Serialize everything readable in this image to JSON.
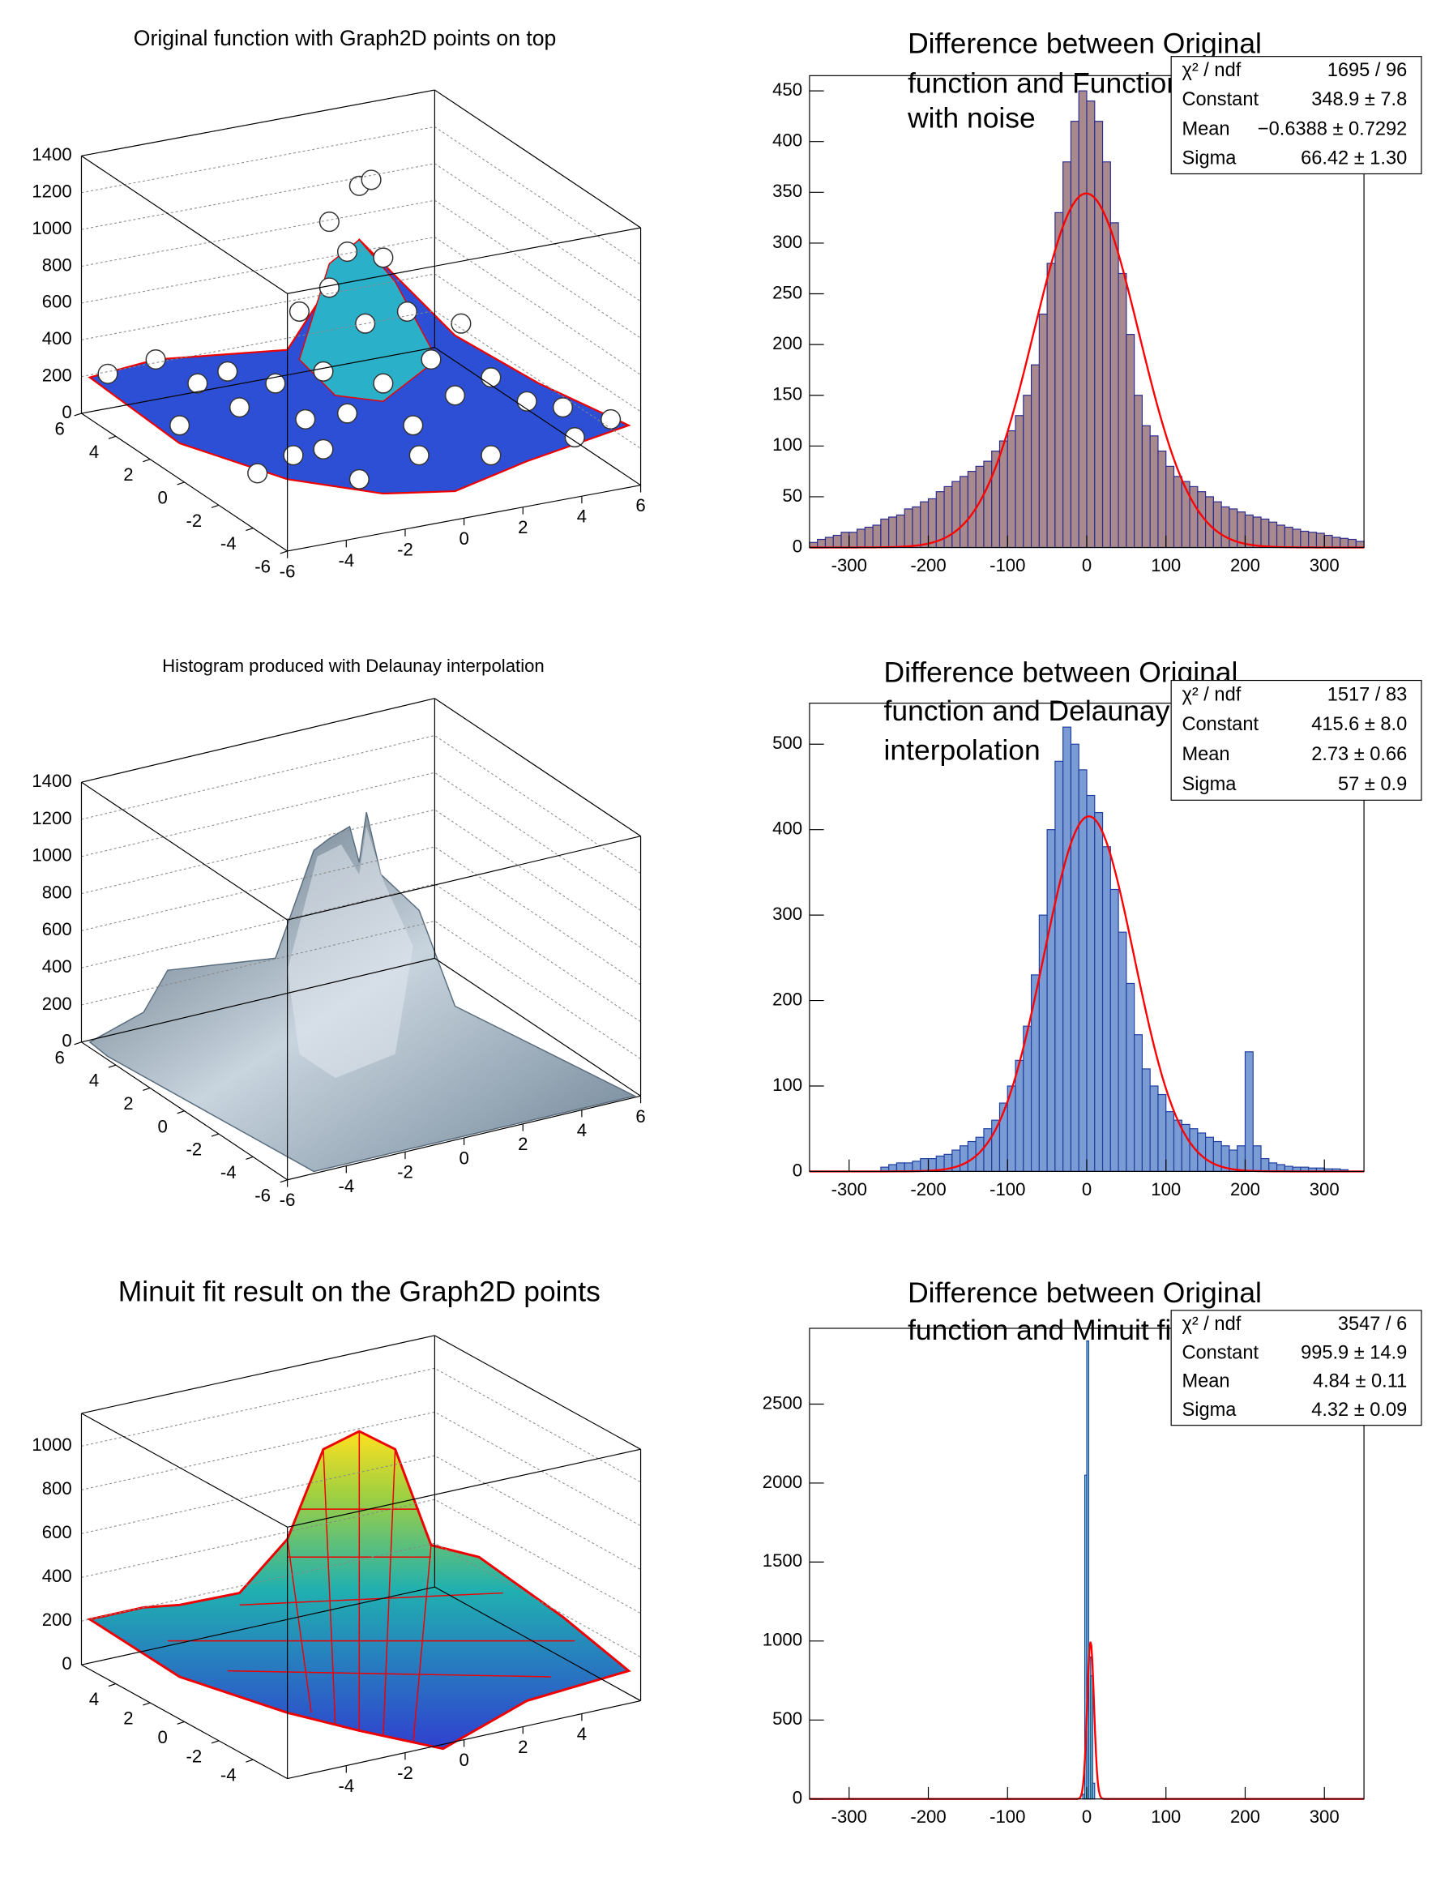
{
  "chart_data": [
    {
      "type": "surface3d",
      "title": "Original function with Graph2D points on top",
      "xlim": [
        -6,
        6
      ],
      "ylim": [
        -6,
        6
      ],
      "zlim": [
        0,
        1400
      ],
      "xticks": [
        -6,
        -4,
        -2,
        0,
        2,
        4,
        6
      ],
      "yticks": [
        -6,
        -4,
        -2,
        0,
        2,
        4,
        6
      ],
      "zticks": [
        0,
        200,
        400,
        600,
        800,
        1000,
        1200,
        1400
      ]
    },
    {
      "type": "histogram",
      "title": [
        "Difference between Original",
        "function and Function",
        "with noise"
      ],
      "bins": [
        -350,
        -340,
        -330,
        -320,
        -310,
        -300,
        -290,
        -280,
        -270,
        -260,
        -250,
        -240,
        -230,
        -220,
        -210,
        -200,
        -190,
        -180,
        -170,
        -160,
        -150,
        -140,
        -130,
        -120,
        -110,
        -100,
        -90,
        -80,
        -70,
        -60,
        -50,
        -40,
        -30,
        -20,
        -10,
        0,
        10,
        20,
        30,
        40,
        50,
        60,
        70,
        80,
        90,
        100,
        110,
        120,
        130,
        140,
        150,
        160,
        170,
        180,
        190,
        200,
        210,
        220,
        230,
        240,
        250,
        260,
        270,
        280,
        290,
        300,
        310,
        320,
        330,
        340,
        350
      ],
      "values": [
        5,
        8,
        10,
        12,
        15,
        15,
        18,
        20,
        22,
        28,
        30,
        32,
        38,
        40,
        45,
        48,
        55,
        60,
        65,
        70,
        75,
        80,
        85,
        95,
        105,
        115,
        130,
        150,
        180,
        230,
        280,
        330,
        380,
        420,
        450,
        440,
        420,
        380,
        320,
        270,
        210,
        150,
        120,
        110,
        95,
        80,
        70,
        65,
        60,
        55,
        50,
        45,
        40,
        38,
        35,
        32,
        30,
        28,
        25,
        22,
        20,
        18,
        16,
        15,
        14,
        12,
        10,
        9,
        8,
        6
      ],
      "color": "#2b2b8f",
      "fill": "#a8898d",
      "fit_color": "#ff0000",
      "xlim": [
        -350,
        350
      ],
      "ylim": [
        0,
        465
      ],
      "xticks": [
        -300,
        -200,
        -100,
        0,
        100,
        200,
        300
      ],
      "yticks": [
        0,
        50,
        100,
        150,
        200,
        250,
        300,
        350,
        400,
        450
      ],
      "stats": [
        {
          "name": "χ² / ndf",
          "label": "1695 / 96"
        },
        {
          "name": "Constant",
          "value": 348.9,
          "label": "348.9 ± 7.8"
        },
        {
          "name": "Mean",
          "value": -0.6388,
          "label": "−0.6388 ± 0.7292"
        },
        {
          "name": "Sigma",
          "value": 66.42,
          "label": "66.42 ± 1.30"
        }
      ]
    },
    {
      "type": "surface3d",
      "title": "Histogram produced with Delaunay interpolation",
      "xlim": [
        -6,
        6
      ],
      "ylim": [
        -6,
        6
      ],
      "zlim": [
        0,
        1400
      ],
      "xticks": [
        -6,
        -4,
        -2,
        0,
        2,
        4,
        6
      ],
      "yticks": [
        -6,
        -4,
        -2,
        0,
        2,
        4,
        6
      ],
      "zticks": [
        0,
        200,
        400,
        600,
        800,
        1000,
        1200,
        1400
      ]
    },
    {
      "type": "histogram",
      "title": [
        "Difference between Original",
        "function and Delaunay triangles",
        "interpolation"
      ],
      "bins": [
        -350,
        -340,
        -330,
        -320,
        -310,
        -300,
        -290,
        -280,
        -270,
        -260,
        -250,
        -240,
        -230,
        -220,
        -210,
        -200,
        -190,
        -180,
        -170,
        -160,
        -150,
        -140,
        -130,
        -120,
        -110,
        -100,
        -90,
        -80,
        -70,
        -60,
        -50,
        -40,
        -30,
        -20,
        -10,
        0,
        10,
        20,
        30,
        40,
        50,
        60,
        70,
        80,
        90,
        100,
        110,
        120,
        130,
        140,
        150,
        160,
        170,
        180,
        190,
        200,
        210,
        220,
        230,
        240,
        250,
        260,
        270,
        280,
        290,
        300,
        310,
        320,
        330,
        340,
        350
      ],
      "values": [
        0,
        0,
        0,
        0,
        0,
        0,
        0,
        0,
        0,
        5,
        8,
        10,
        10,
        12,
        15,
        15,
        18,
        20,
        25,
        30,
        35,
        40,
        50,
        60,
        80,
        100,
        130,
        170,
        230,
        300,
        400,
        480,
        520,
        500,
        470,
        440,
        420,
        380,
        330,
        280,
        220,
        160,
        120,
        100,
        90,
        70,
        60,
        55,
        50,
        45,
        40,
        35,
        30,
        25,
        30,
        140,
        30,
        15,
        10,
        8,
        6,
        5,
        5,
        4,
        4,
        3,
        3,
        2,
        0,
        0
      ],
      "color": "#1f3fa0",
      "fill": "#7a9bd4",
      "fit_color": "#ff0000",
      "xlim": [
        -350,
        350
      ],
      "ylim": [
        0,
        548
      ],
      "xticks": [
        -300,
        -200,
        -100,
        0,
        100,
        200,
        300
      ],
      "yticks": [
        0,
        100,
        200,
        300,
        400,
        500
      ],
      "stats": [
        {
          "name": "χ² / ndf",
          "label": "1517 / 83"
        },
        {
          "name": "Constant",
          "value": 415.6,
          "label": "415.6 ± 8.0"
        },
        {
          "name": "Mean",
          "value": 2.73,
          "label": "2.73 ± 0.66"
        },
        {
          "name": "Sigma",
          "value": 57,
          "label": "57 ± 0.9"
        }
      ]
    },
    {
      "type": "surface3d",
      "title": "Minuit fit result on the Graph2D points",
      "xlim": [
        -6,
        6
      ],
      "ylim": [
        -6,
        6
      ],
      "zlim": [
        0,
        1150
      ],
      "xticks": [
        -4,
        -2,
        0,
        2,
        4
      ],
      "yticks": [
        -4,
        -2,
        0,
        2,
        4
      ],
      "zticks": [
        0,
        200,
        400,
        600,
        800,
        1000
      ]
    },
    {
      "type": "histogram",
      "title": [
        "Difference between Original",
        "function and Minuit fit"
      ],
      "bins": [
        -350,
        -5,
        -2.5,
        0,
        2.5,
        5,
        7.5,
        10,
        350
      ],
      "values": [
        0,
        30,
        2050,
        2900,
        900,
        780,
        100,
        0
      ],
      "color": "#1f3fa0",
      "fill": "#7fd3c9",
      "fit_color": "#ff0000",
      "xlim": [
        -350,
        350
      ],
      "ylim": [
        0,
        2980
      ],
      "xticks": [
        -300,
        -200,
        -100,
        0,
        100,
        200,
        300
      ],
      "yticks": [
        0,
        500,
        1000,
        1500,
        2000,
        2500
      ],
      "stats": [
        {
          "name": "χ² / ndf",
          "label": "3547 / 6"
        },
        {
          "name": "Constant",
          "value": 995.9,
          "label": "995.9 ± 14.9"
        },
        {
          "name": "Mean",
          "value": 4.84,
          "label": "4.84 ± 0.11"
        },
        {
          "name": "Sigma",
          "value": 4.32,
          "label": "4.32 ± 0.09"
        }
      ]
    }
  ]
}
